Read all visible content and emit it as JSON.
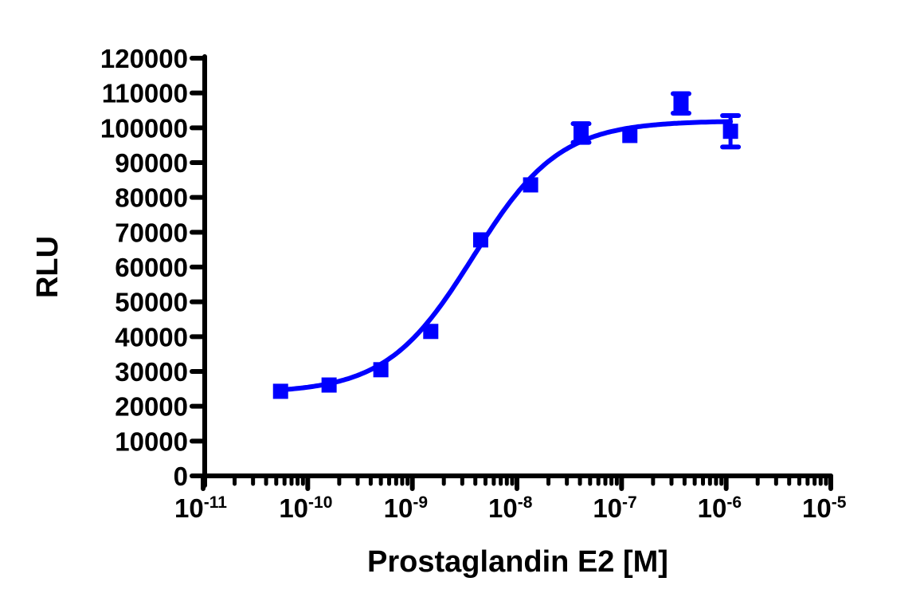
{
  "chart_data": {
    "type": "scatter",
    "subtype": "dose-response (sigmoidal fit) with error bars",
    "title": "",
    "xlabel": "Prostaglandin E2 [M]",
    "ylabel": "RLU",
    "xscale": "log",
    "xlim": [
      1e-11,
      1e-05
    ],
    "ylim": [
      0,
      120000
    ],
    "x_ticks": [
      "10-11",
      "10-10",
      "10-9",
      "10-8",
      "10-7",
      "10-6",
      "10-5"
    ],
    "x_tick_labels": [
      {
        "base": "10",
        "exp": "-11"
      },
      {
        "base": "10",
        "exp": "-10"
      },
      {
        "base": "10",
        "exp": "-9"
      },
      {
        "base": "10",
        "exp": "-8"
      },
      {
        "base": "10",
        "exp": "-7"
      },
      {
        "base": "10",
        "exp": "-6"
      },
      {
        "base": "10",
        "exp": "-5"
      }
    ],
    "y_ticks": [
      0,
      10000,
      20000,
      30000,
      40000,
      50000,
      60000,
      70000,
      80000,
      90000,
      100000,
      110000,
      120000
    ],
    "grid": false,
    "legend": null,
    "color": "#0000ff",
    "series": [
      {
        "name": "Prostaglandin E2",
        "marker": "square",
        "x": [
          5.5e-11,
          1.6e-10,
          5e-10,
          1.5e-09,
          4.5e-09,
          1.35e-08,
          4.1e-08,
          1.2e-07,
          3.7e-07,
          1.1e-06
        ],
        "y": [
          24300,
          26100,
          30500,
          41500,
          67800,
          83600,
          98500,
          97800,
          107000,
          99000
        ],
        "error": [
          0,
          0,
          0,
          0,
          0,
          0,
          2700,
          0,
          2800,
          4500
        ]
      }
    ],
    "fit": {
      "model": "4PL sigmoidal",
      "bottom": 23800,
      "top": 102000,
      "log_ec50": -8.42,
      "hill_slope": 1.05
    }
  }
}
